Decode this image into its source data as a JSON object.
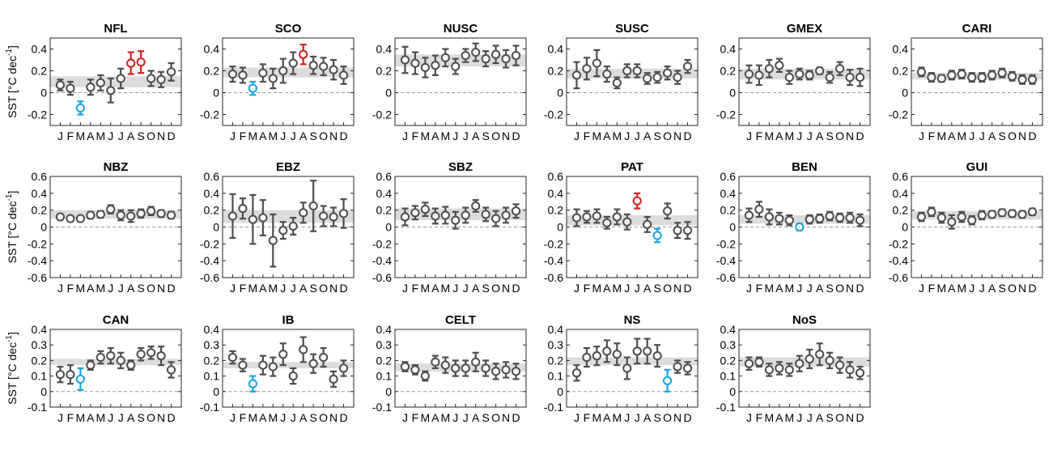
{
  "figure": {
    "ylabel_prefix": "SST [",
    "ylabel_unit": "°C dec",
    "ylabel_exp": "-1",
    "ylabel_suffix": "]",
    "month_labels": [
      "J",
      "F",
      "M",
      "A",
      "M",
      "J",
      "J",
      "A",
      "S",
      "O",
      "N",
      "D"
    ],
    "colors": {
      "normal": "#4d4d4d",
      "high": "#d62020",
      "low": "#1aa3e0",
      "band": "#dcdcdc",
      "zero": "#9a9a9a"
    }
  },
  "chart_data": [
    {
      "type": "errorbar",
      "title": "NFL",
      "ylim": [
        -0.3,
        0.5
      ],
      "yticks": [
        -0.2,
        0,
        0.2,
        0.4
      ],
      "ytick_labels": [
        "-0.2",
        "0",
        "0.2",
        "0.4"
      ],
      "band": [
        0.05,
        0.15
      ],
      "values": [
        0.07,
        0.04,
        -0.14,
        0.05,
        0.09,
        0.02,
        0.13,
        0.27,
        0.28,
        0.13,
        0.12,
        0.19
      ],
      "errors": [
        0.05,
        0.06,
        0.06,
        0.07,
        0.07,
        0.11,
        0.09,
        0.1,
        0.1,
        0.07,
        0.07,
        0.08
      ],
      "status": [
        "normal",
        "normal",
        "low",
        "normal",
        "normal",
        "normal",
        "normal",
        "high",
        "high",
        "normal",
        "normal",
        "normal"
      ]
    },
    {
      "type": "errorbar",
      "title": "SCO",
      "ylim": [
        -0.3,
        0.5
      ],
      "yticks": [
        -0.2,
        0,
        0.2,
        0.4
      ],
      "ytick_labels": [
        "-0.2",
        "0",
        "0.2",
        "0.4"
      ],
      "band": [
        0.14,
        0.23
      ],
      "values": [
        0.17,
        0.16,
        0.04,
        0.18,
        0.13,
        0.2,
        0.27,
        0.35,
        0.25,
        0.24,
        0.21,
        0.16
      ],
      "errors": [
        0.07,
        0.07,
        0.06,
        0.08,
        0.09,
        0.11,
        0.1,
        0.09,
        0.08,
        0.08,
        0.09,
        0.08
      ],
      "status": [
        "normal",
        "normal",
        "low",
        "normal",
        "normal",
        "normal",
        "normal",
        "high",
        "normal",
        "normal",
        "normal",
        "normal"
      ]
    },
    {
      "type": "errorbar",
      "title": "NUSC",
      "ylim": [
        -0.3,
        0.5
      ],
      "yticks": [
        -0.2,
        0,
        0.2,
        0.4
      ],
      "ytick_labels": [
        "-0.2",
        "0",
        "0.2",
        "0.4"
      ],
      "band": [
        0.24,
        0.35
      ],
      "values": [
        0.3,
        0.27,
        0.23,
        0.25,
        0.32,
        0.24,
        0.34,
        0.37,
        0.31,
        0.35,
        0.31,
        0.34
      ],
      "errors": [
        0.12,
        0.1,
        0.09,
        0.09,
        0.08,
        0.07,
        0.06,
        0.08,
        0.07,
        0.08,
        0.08,
        0.09
      ],
      "status": [
        "normal",
        "normal",
        "normal",
        "normal",
        "normal",
        "normal",
        "normal",
        "normal",
        "normal",
        "normal",
        "normal",
        "normal"
      ]
    },
    {
      "type": "errorbar",
      "title": "SUSC",
      "ylim": [
        -0.3,
        0.5
      ],
      "yticks": [
        -0.2,
        0,
        0.2,
        0.4
      ],
      "ytick_labels": [
        "-0.2",
        "0",
        "0.2",
        "0.4"
      ],
      "band": [
        0.13,
        0.22
      ],
      "values": [
        0.16,
        0.22,
        0.27,
        0.17,
        0.09,
        0.2,
        0.2,
        0.13,
        0.14,
        0.18,
        0.14,
        0.24
      ],
      "errors": [
        0.12,
        0.1,
        0.12,
        0.07,
        0.05,
        0.06,
        0.06,
        0.05,
        0.05,
        0.06,
        0.06,
        0.06
      ],
      "status": [
        "normal",
        "normal",
        "normal",
        "normal",
        "normal",
        "normal",
        "normal",
        "normal",
        "normal",
        "normal",
        "normal",
        "normal"
      ]
    },
    {
      "type": "errorbar",
      "title": "GMEX",
      "ylim": [
        -0.3,
        0.5
      ],
      "yticks": [
        -0.2,
        0,
        0.2,
        0.4
      ],
      "ytick_labels": [
        "-0.2",
        "0",
        "0.2",
        "0.4"
      ],
      "band": [
        0.12,
        0.22
      ],
      "values": [
        0.17,
        0.16,
        0.22,
        0.25,
        0.14,
        0.17,
        0.16,
        0.2,
        0.14,
        0.22,
        0.14,
        0.14
      ],
      "errors": [
        0.08,
        0.09,
        0.08,
        0.06,
        0.06,
        0.05,
        0.04,
        0.03,
        0.05,
        0.06,
        0.07,
        0.08
      ],
      "status": [
        "normal",
        "normal",
        "normal",
        "normal",
        "normal",
        "normal",
        "normal",
        "normal",
        "normal",
        "normal",
        "normal",
        "normal"
      ]
    },
    {
      "type": "errorbar",
      "title": "CARI",
      "ylim": [
        -0.3,
        0.5
      ],
      "yticks": [
        -0.2,
        0,
        0.2,
        0.4
      ],
      "ytick_labels": [
        "-0.2",
        "0",
        "0.2",
        "0.4"
      ],
      "band": [
        0.12,
        0.18
      ],
      "values": [
        0.19,
        0.14,
        0.13,
        0.16,
        0.17,
        0.14,
        0.14,
        0.16,
        0.18,
        0.15,
        0.12,
        0.12
      ],
      "errors": [
        0.04,
        0.04,
        0.03,
        0.04,
        0.04,
        0.04,
        0.04,
        0.04,
        0.04,
        0.04,
        0.04,
        0.04
      ],
      "status": [
        "normal",
        "normal",
        "normal",
        "normal",
        "normal",
        "normal",
        "normal",
        "normal",
        "normal",
        "normal",
        "normal",
        "normal"
      ]
    },
    {
      "type": "errorbar",
      "title": "NBZ",
      "ylim": [
        -0.6,
        0.6
      ],
      "yticks": [
        -0.6,
        -0.4,
        -0.2,
        0,
        0.2,
        0.4,
        0.6
      ],
      "ytick_labels": [
        "-0.6",
        "-0.4",
        "-0.2",
        "0",
        "0.2",
        "0.4",
        "0.6"
      ],
      "band": [
        0.1,
        0.2
      ],
      "values": [
        0.12,
        0.1,
        0.1,
        0.14,
        0.15,
        0.21,
        0.14,
        0.13,
        0.16,
        0.19,
        0.16,
        0.14
      ],
      "errors": [
        0.03,
        0.03,
        0.03,
        0.04,
        0.04,
        0.05,
        0.06,
        0.07,
        0.05,
        0.05,
        0.04,
        0.04
      ],
      "status": [
        "normal",
        "normal",
        "normal",
        "normal",
        "normal",
        "normal",
        "normal",
        "normal",
        "normal",
        "normal",
        "normal",
        "normal"
      ]
    },
    {
      "type": "errorbar",
      "title": "EBZ",
      "ylim": [
        -0.6,
        0.6
      ],
      "yticks": [
        -0.6,
        -0.4,
        -0.2,
        0,
        0.2,
        0.4,
        0.6
      ],
      "ytick_labels": [
        "-0.6",
        "-0.4",
        "-0.2",
        "0",
        "0.2",
        "0.4",
        "0.6"
      ],
      "band": [
        0.05,
        0.2
      ],
      "values": [
        0.13,
        0.22,
        0.09,
        0.11,
        -0.16,
        -0.04,
        0.01,
        0.17,
        0.25,
        0.13,
        0.12,
        0.16
      ],
      "errors": [
        0.26,
        0.12,
        0.29,
        0.21,
        0.31,
        0.1,
        0.1,
        0.12,
        0.3,
        0.12,
        0.11,
        0.17
      ],
      "status": [
        "normal",
        "normal",
        "normal",
        "normal",
        "normal",
        "normal",
        "normal",
        "normal",
        "normal",
        "normal",
        "normal",
        "normal"
      ]
    },
    {
      "type": "errorbar",
      "title": "SBZ",
      "ylim": [
        -0.6,
        0.6
      ],
      "yticks": [
        -0.6,
        -0.4,
        -0.2,
        0,
        0.2,
        0.4,
        0.6
      ],
      "ytick_labels": [
        "-0.6",
        "-0.4",
        "-0.2",
        "0",
        "0.2",
        "0.4",
        "0.6"
      ],
      "band": [
        0.08,
        0.22
      ],
      "values": [
        0.12,
        0.17,
        0.21,
        0.13,
        0.14,
        0.08,
        0.14,
        0.25,
        0.15,
        0.1,
        0.14,
        0.19
      ],
      "errors": [
        0.1,
        0.08,
        0.08,
        0.09,
        0.1,
        0.1,
        0.09,
        0.07,
        0.08,
        0.09,
        0.09,
        0.08
      ],
      "status": [
        "normal",
        "normal",
        "normal",
        "normal",
        "normal",
        "normal",
        "normal",
        "normal",
        "normal",
        "normal",
        "normal",
        "normal"
      ]
    },
    {
      "type": "errorbar",
      "title": "PAT",
      "ylim": [
        -0.6,
        0.6
      ],
      "yticks": [
        -0.6,
        -0.4,
        -0.2,
        0,
        0.2,
        0.4,
        0.6
      ],
      "ytick_labels": [
        "-0.6",
        "-0.4",
        "-0.2",
        "0",
        "0.2",
        "0.4",
        "0.6"
      ],
      "band": [
        0.02,
        0.14
      ],
      "values": [
        0.11,
        0.12,
        0.13,
        0.05,
        0.12,
        0.06,
        0.31,
        0.03,
        -0.1,
        0.19,
        -0.04,
        -0.04
      ],
      "errors": [
        0.1,
        0.07,
        0.08,
        0.07,
        0.09,
        0.09,
        0.09,
        0.09,
        0.08,
        0.09,
        0.09,
        0.1
      ],
      "status": [
        "normal",
        "normal",
        "normal",
        "normal",
        "normal",
        "normal",
        "high",
        "normal",
        "low",
        "normal",
        "normal",
        "normal"
      ]
    },
    {
      "type": "errorbar",
      "title": "BEN",
      "ylim": [
        -0.6,
        0.6
      ],
      "yticks": [
        -0.6,
        -0.4,
        -0.2,
        0,
        0.2,
        0.4,
        0.6
      ],
      "ytick_labels": [
        "-0.6",
        "-0.4",
        "-0.2",
        "0",
        "0.2",
        "0.4",
        "0.6"
      ],
      "band": [
        0.04,
        0.14
      ],
      "values": [
        0.14,
        0.21,
        0.12,
        0.1,
        0.08,
        0.0,
        0.09,
        0.1,
        0.13,
        0.11,
        0.11,
        0.08
      ],
      "errors": [
        0.08,
        0.09,
        0.09,
        0.07,
        0.06,
        0.04,
        0.05,
        0.05,
        0.05,
        0.05,
        0.06,
        0.07
      ],
      "status": [
        "normal",
        "normal",
        "normal",
        "normal",
        "normal",
        "low",
        "normal",
        "normal",
        "normal",
        "normal",
        "normal",
        "normal"
      ]
    },
    {
      "type": "errorbar",
      "title": "GUI",
      "ylim": [
        -0.6,
        0.6
      ],
      "yticks": [
        -0.6,
        -0.4,
        -0.2,
        0,
        0.2,
        0.4,
        0.6
      ],
      "ytick_labels": [
        "-0.6",
        "-0.4",
        "-0.2",
        "0",
        "0.2",
        "0.4",
        "0.6"
      ],
      "band": [
        0.09,
        0.19
      ],
      "values": [
        0.12,
        0.18,
        0.11,
        0.06,
        0.12,
        0.08,
        0.14,
        0.15,
        0.17,
        0.16,
        0.15,
        0.18
      ],
      "errors": [
        0.05,
        0.05,
        0.06,
        0.08,
        0.06,
        0.05,
        0.05,
        0.04,
        0.04,
        0.04,
        0.04,
        0.04
      ],
      "status": [
        "normal",
        "normal",
        "normal",
        "normal",
        "normal",
        "normal",
        "normal",
        "normal",
        "normal",
        "normal",
        "normal",
        "normal"
      ]
    },
    {
      "type": "errorbar",
      "title": "CAN",
      "ylim": [
        -0.1,
        0.4
      ],
      "yticks": [
        -0.1,
        0,
        0.1,
        0.2,
        0.3,
        0.4
      ],
      "ytick_labels": [
        "-0.1",
        "0",
        "0.1",
        "0.2",
        "0.3",
        "0.4"
      ],
      "band": [
        0.17,
        0.21
      ],
      "values": [
        0.11,
        0.11,
        0.08,
        0.17,
        0.22,
        0.23,
        0.2,
        0.17,
        0.24,
        0.25,
        0.23,
        0.14
      ],
      "errors": [
        0.05,
        0.06,
        0.07,
        0.03,
        0.04,
        0.05,
        0.05,
        0.03,
        0.04,
        0.04,
        0.06,
        0.05
      ],
      "status": [
        "normal",
        "normal",
        "low",
        "normal",
        "normal",
        "normal",
        "normal",
        "normal",
        "normal",
        "normal",
        "normal",
        "normal"
      ]
    },
    {
      "type": "errorbar",
      "title": "IB",
      "ylim": [
        -0.1,
        0.4
      ],
      "yticks": [
        -0.1,
        0,
        0.1,
        0.2,
        0.3,
        0.4
      ],
      "ytick_labels": [
        "-0.1",
        "0",
        "0.1",
        "0.2",
        "0.3",
        "0.4"
      ],
      "band": [
        0.15,
        0.19
      ],
      "values": [
        0.22,
        0.17,
        0.05,
        0.17,
        0.16,
        0.24,
        0.1,
        0.27,
        0.18,
        0.22,
        0.08,
        0.15
      ],
      "errors": [
        0.04,
        0.04,
        0.05,
        0.06,
        0.06,
        0.07,
        0.05,
        0.08,
        0.06,
        0.06,
        0.05,
        0.05
      ],
      "status": [
        "normal",
        "normal",
        "low",
        "normal",
        "normal",
        "normal",
        "normal",
        "normal",
        "normal",
        "normal",
        "normal",
        "normal"
      ]
    },
    {
      "type": "errorbar",
      "title": "CELT",
      "ylim": [
        -0.1,
        0.4
      ],
      "yticks": [
        -0.1,
        0,
        0.1,
        0.2,
        0.3,
        0.4
      ],
      "ytick_labels": [
        "-0.1",
        "0",
        "0.1",
        "0.2",
        "0.3",
        "0.4"
      ],
      "band": [
        0.13,
        0.18
      ],
      "values": [
        0.16,
        0.14,
        0.1,
        0.19,
        0.17,
        0.15,
        0.15,
        0.19,
        0.15,
        0.13,
        0.14,
        0.13
      ],
      "errors": [
        0.03,
        0.03,
        0.03,
        0.04,
        0.05,
        0.05,
        0.05,
        0.06,
        0.05,
        0.05,
        0.05,
        0.05
      ],
      "status": [
        "normal",
        "normal",
        "normal",
        "normal",
        "normal",
        "normal",
        "normal",
        "normal",
        "normal",
        "normal",
        "normal",
        "normal"
      ]
    },
    {
      "type": "errorbar",
      "title": "NS",
      "ylim": [
        -0.1,
        0.4
      ],
      "yticks": [
        -0.1,
        0,
        0.1,
        0.2,
        0.3,
        0.4
      ],
      "ytick_labels": [
        "-0.1",
        "0",
        "0.1",
        "0.2",
        "0.3",
        "0.4"
      ],
      "band": [
        0.17,
        0.22
      ],
      "values": [
        0.12,
        0.22,
        0.23,
        0.26,
        0.24,
        0.15,
        0.26,
        0.26,
        0.23,
        0.07,
        0.16,
        0.15
      ],
      "errors": [
        0.05,
        0.06,
        0.06,
        0.07,
        0.07,
        0.07,
        0.08,
        0.08,
        0.07,
        0.07,
        0.04,
        0.04
      ],
      "status": [
        "normal",
        "normal",
        "normal",
        "normal",
        "normal",
        "normal",
        "normal",
        "normal",
        "normal",
        "low",
        "normal",
        "normal"
      ]
    },
    {
      "type": "errorbar",
      "title": "NoS",
      "ylim": [
        -0.1,
        0.4
      ],
      "yticks": [
        -0.1,
        0,
        0.1,
        0.2,
        0.3,
        0.4
      ],
      "ytick_labels": [
        "-0.1",
        "0",
        "0.1",
        "0.2",
        "0.3",
        "0.4"
      ],
      "band": [
        0.16,
        0.22
      ],
      "values": [
        0.18,
        0.19,
        0.14,
        0.15,
        0.14,
        0.18,
        0.21,
        0.24,
        0.2,
        0.17,
        0.14,
        0.12
      ],
      "errors": [
        0.04,
        0.03,
        0.04,
        0.04,
        0.04,
        0.05,
        0.06,
        0.07,
        0.05,
        0.05,
        0.05,
        0.04
      ],
      "status": [
        "normal",
        "normal",
        "normal",
        "normal",
        "normal",
        "normal",
        "normal",
        "normal",
        "normal",
        "normal",
        "normal",
        "normal"
      ]
    }
  ]
}
